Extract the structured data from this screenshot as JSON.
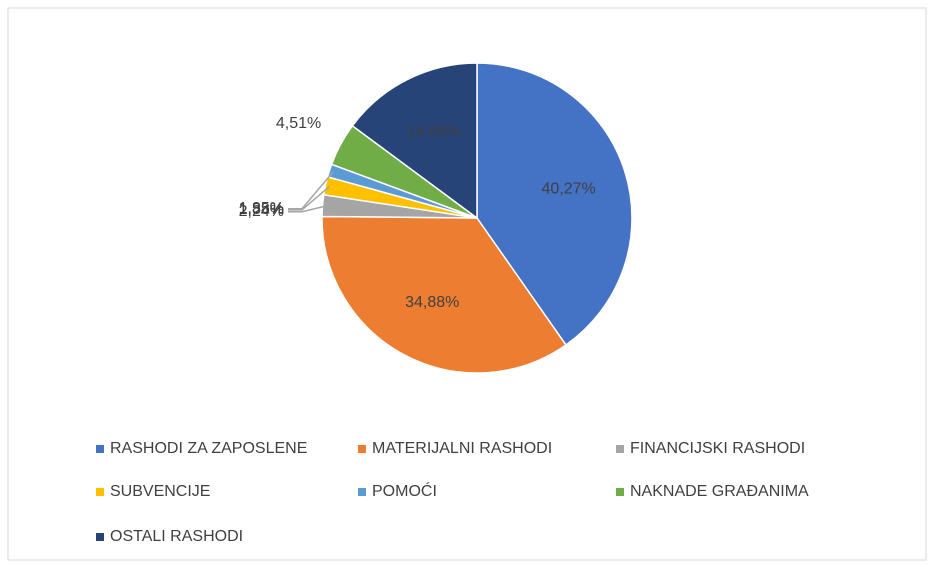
{
  "chart_data": {
    "type": "pie",
    "categories": [
      "RASHODI ZA ZAPOSLENE",
      "MATERIJALNI RASHODI",
      "FINANCIJSKI RASHODI",
      "SUBVENCIJE",
      "POMOĆI",
      "NAKNADE GRAĐANIMA",
      "OSTALI RASHODI"
    ],
    "values": [
      40.27,
      34.88,
      2.24,
      1.88,
      1.35,
      4.51,
      14.86
    ],
    "value_labels": [
      "40,27%",
      "34,88%",
      "2,24%",
      "1,88%",
      "1,35%",
      "4,51%",
      "14,86%"
    ],
    "colors": [
      "#4472c4",
      "#ed7d31",
      "#a5a5a5",
      "#ffc000",
      "#5b9bd5",
      "#70ad47",
      "#264478"
    ],
    "legend": "bottom"
  }
}
